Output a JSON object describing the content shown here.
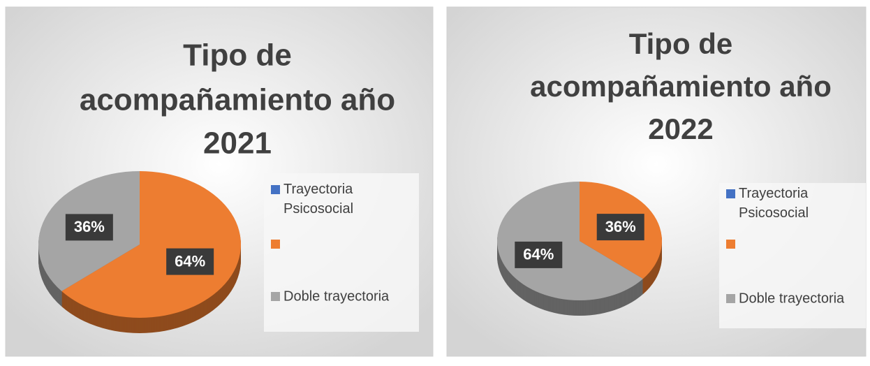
{
  "chart_data": [
    {
      "type": "pie",
      "title": [
        "Tipo de",
        "acompañamiento año",
        "2021"
      ],
      "categories": [
        "Trayectoria Psicosocial",
        null,
        "Doble trayectoria"
      ],
      "colors": [
        "#4472c4",
        "#ed7d31",
        "#a5a5a5"
      ],
      "values": [
        0,
        64,
        36
      ],
      "value_labels": [
        null,
        "64%",
        "36%"
      ],
      "legend": "right"
    },
    {
      "type": "pie",
      "title": [
        "Tipo de",
        "acompañamiento año",
        "2022"
      ],
      "categories": [
        "Trayectoria Psicosocial",
        null,
        "Doble trayectoria"
      ],
      "colors": [
        "#4472c4",
        "#ed7d31",
        "#a5a5a5"
      ],
      "values": [
        0,
        36,
        64
      ],
      "value_labels": [
        null,
        "36%",
        "64%"
      ],
      "legend": "right"
    }
  ]
}
